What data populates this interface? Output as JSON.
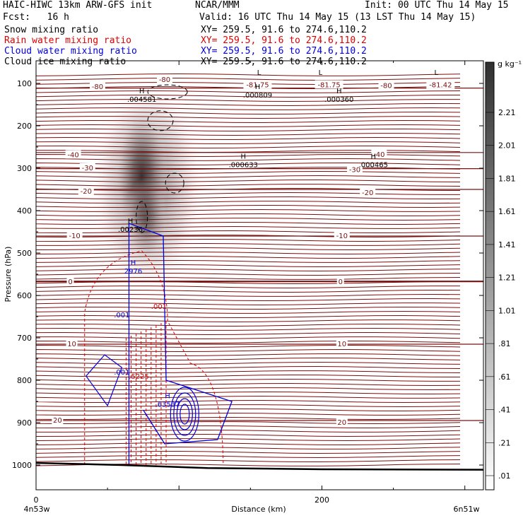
{
  "header": {
    "title_left": "HAIC-HIWC 13km ARW-GFS init",
    "org": "NCAR/MMM",
    "init": "Init: 00 UTC Thu 14 May 15",
    "fcst": "Fcst:   16 h",
    "valid": "Valid: 16 UTC Thu 14 May 15 (13 LST Thu 14 May 15)"
  },
  "fields": [
    {
      "name": "Snow mixing ratio",
      "xy": "XY= 259.5, 91.6 to 274.6,110.2",
      "color": "#000000"
    },
    {
      "name": "Rain water mixing ratio",
      "xy": "XY= 259.5, 91.6 to 274.6,110.2",
      "color": "#e00000"
    },
    {
      "name": "Cloud water mixing ratio",
      "xy": "XY= 259.5, 91.6 to 274.6,110.2",
      "color": "#0000dd"
    },
    {
      "name": "Cloud ice mixing ratio",
      "xy": "XY= 259.5, 91.6 to 274.6,110.2",
      "color": "#000000"
    }
  ],
  "colorbar": {
    "unit": "g kg⁻¹",
    "labels": [
      "2.21",
      "2.01",
      "1.81",
      "1.61",
      "1.41",
      "1.21",
      "1.01",
      ".81",
      ".61",
      ".41",
      ".21",
      ".01"
    ]
  },
  "chart_data": {
    "type": "heatmap",
    "title": "Snow mixing ratio",
    "xlabel": "Distance (km)",
    "ylabel": "Pressure (hPa)",
    "xlim": [
      0,
      313
    ],
    "ylim": [
      1050,
      60
    ],
    "x_ticks": [
      "0",
      "200"
    ],
    "y_ticks": [
      "100",
      "200",
      "300",
      "400",
      "500",
      "600",
      "700",
      "800",
      "900",
      "1000"
    ],
    "x_endpoints": {
      "left": "4n53w",
      "right": "6n51w"
    },
    "temperature_contours": [
      {
        "label": "-80",
        "p": 111
      },
      {
        "label": "-40",
        "p": 263
      },
      {
        "label": "-30",
        "p": 301
      },
      {
        "label": "-20",
        "p": 350
      },
      {
        "label": "-10",
        "p": 460
      },
      {
        "label": "0",
        "p": 567
      },
      {
        "label": "10",
        "p": 715
      },
      {
        "label": "20",
        "p": 895
      }
    ],
    "contour_labels": [
      {
        "text": "-80",
        "x": 90,
        "p": 92,
        "color": "#7a1010"
      },
      {
        "text": "-80",
        "x": 43,
        "p": 108,
        "color": "#7a1010"
      },
      {
        "text": "-81.75",
        "x": 155,
        "p": 104,
        "color": "#7a1010"
      },
      {
        "text": "-81.75",
        "x": 205,
        "p": 104,
        "color": "#7a1010"
      },
      {
        "text": "-80",
        "x": 245,
        "p": 106,
        "color": "#7a1010"
      },
      {
        "text": "-81.42",
        "x": 283,
        "p": 104,
        "color": "#7a1010"
      },
      {
        "text": "-40",
        "x": 26,
        "p": 269,
        "color": "#7a1010"
      },
      {
        "text": "-40",
        "x": 240,
        "p": 268,
        "color": "#7a1010"
      },
      {
        "text": "-30",
        "x": 36,
        "p": 300,
        "color": "#7a1010"
      },
      {
        "text": "-30",
        "x": 223,
        "p": 304,
        "color": "#7a1010"
      },
      {
        "text": "-20",
        "x": 35,
        "p": 355,
        "color": "#7a1010"
      },
      {
        "text": "-20",
        "x": 232,
        "p": 358,
        "color": "#7a1010"
      },
      {
        "text": "-10",
        "x": 27,
        "p": 460,
        "color": "#7a1010"
      },
      {
        "text": "-10",
        "x": 214,
        "p": 460,
        "color": "#7a1010"
      },
      {
        "text": "0",
        "x": 24,
        "p": 568,
        "color": "#7a1010"
      },
      {
        "text": "0",
        "x": 213,
        "p": 568,
        "color": "#7a1010"
      },
      {
        "text": "10",
        "x": 25,
        "p": 715,
        "color": "#7a1010"
      },
      {
        "text": "10",
        "x": 214,
        "p": 715,
        "color": "#7a1010"
      },
      {
        "text": "20",
        "x": 15,
        "p": 895,
        "color": "#7a1010"
      },
      {
        "text": "20",
        "x": 214,
        "p": 900,
        "color": "#7a1010"
      }
    ],
    "extrema": [
      {
        "mark": "L",
        "text": "",
        "x": 156,
        "p": 87,
        "color": "#000000"
      },
      {
        "mark": "L",
        "text": "",
        "x": 199,
        "p": 87,
        "color": "#000000"
      },
      {
        "mark": "L",
        "text": "",
        "x": 280,
        "p": 87,
        "color": "#000000"
      },
      {
        "mark": "H",
        "text": ".000809",
        "x": 155,
        "p": 120,
        "color": "#000000"
      },
      {
        "mark": "H",
        "text": ".000360",
        "x": 212,
        "p": 130,
        "color": "#000000"
      },
      {
        "mark": "H",
        "text": ".004581",
        "x": 74,
        "p": 130,
        "color": "#000000"
      },
      {
        "mark": "H",
        "text": ".000633",
        "x": 145,
        "p": 284,
        "color": "#000000"
      },
      {
        "mark": "H",
        "text": ".000465",
        "x": 236,
        "p": 284,
        "color": "#000000"
      },
      {
        "mark": "H",
        "text": ".00236",
        "x": 66,
        "p": 437,
        "color": "#000000"
      },
      {
        "mark": "H",
        "text": "2976",
        "x": 68,
        "p": 535,
        "color": "#0000dd"
      },
      {
        "mark": "",
        "text": ".001",
        "x": 86,
        "p": 618,
        "color": "#e00000"
      },
      {
        "mark": "",
        "text": ".001",
        "x": 60,
        "p": 638,
        "color": "#0000dd"
      },
      {
        "mark": "",
        "text": ".001",
        "x": 60,
        "p": 773,
        "color": "#0000dd"
      },
      {
        "mark": "",
        "text": ".5225",
        "x": 72,
        "p": 783,
        "color": "#e00000"
      },
      {
        "mark": "H",
        "text": ".63537",
        "x": 92,
        "p": 849,
        "color": "#0000dd"
      }
    ],
    "snow_core": {
      "max": 2.21,
      "center_x": 74,
      "center_p": 320,
      "min_shown": 0.01
    },
    "terrain_p": [
      [
        0,
        995
      ],
      [
        60,
        1000
      ],
      [
        120,
        1007
      ],
      [
        200,
        1010
      ],
      [
        313,
        1011
      ]
    ]
  }
}
